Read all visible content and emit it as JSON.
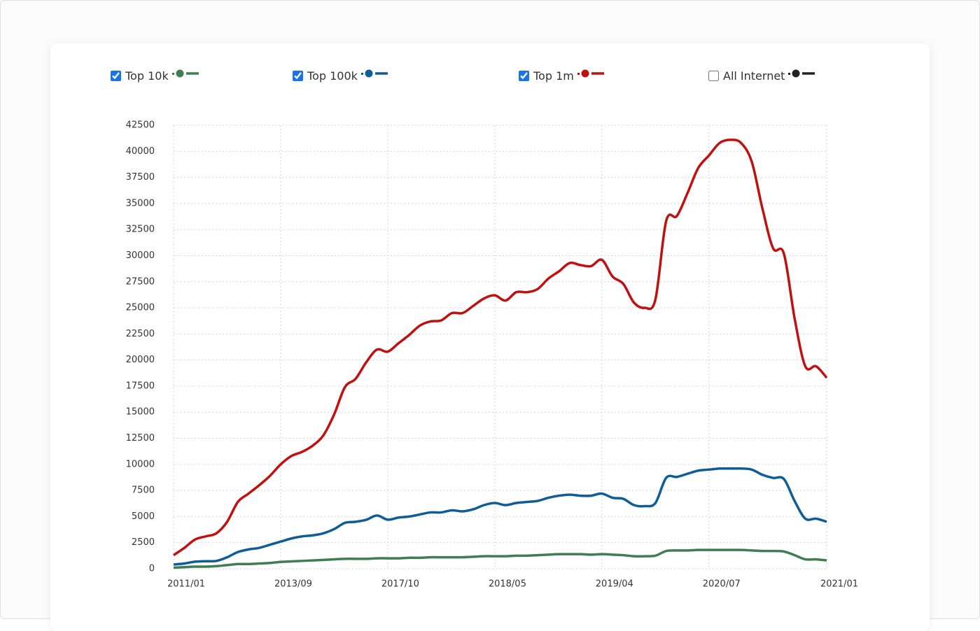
{
  "chart_data": {
    "type": "line",
    "categories": [
      "2011/01",
      null,
      null,
      null,
      null,
      null,
      null,
      null,
      null,
      null,
      "2013/09",
      null,
      null,
      null,
      null,
      null,
      null,
      null,
      null,
      null,
      "2017/10",
      null,
      null,
      null,
      null,
      null,
      null,
      null,
      null,
      null,
      "2018/05",
      null,
      null,
      null,
      null,
      null,
      null,
      null,
      null,
      null,
      "2019/04",
      null,
      null,
      null,
      null,
      null,
      null,
      null,
      null,
      null,
      "2020/07",
      null,
      null,
      null,
      null,
      null,
      null,
      null,
      null,
      null,
      null,
      "2021/01"
    ],
    "series": [
      {
        "name": "Top 10k",
        "color": "#3f7d52",
        "checked": true,
        "values": [
          100,
          150,
          200,
          200,
          250,
          350,
          450,
          450,
          500,
          550,
          650,
          700,
          750,
          800,
          850,
          900,
          950,
          950,
          950,
          1000,
          1000,
          1000,
          1050,
          1050,
          1100,
          1100,
          1100,
          1100,
          1150,
          1200,
          1200,
          1200,
          1250,
          1250,
          1300,
          1350,
          1400,
          1400,
          1400,
          1350,
          1400,
          1350,
          1300,
          1200,
          1200,
          1250,
          1700,
          1750,
          1750,
          1800,
          1800,
          1800,
          1800,
          1800,
          1750,
          1700,
          1700,
          1650,
          1300,
          900,
          900,
          800
        ]
      },
      {
        "name": "Top 100k",
        "color": "#0f5d96",
        "checked": true,
        "values": [
          400,
          500,
          680,
          720,
          750,
          1100,
          1600,
          1850,
          2000,
          2300,
          2600,
          2900,
          3100,
          3200,
          3400,
          3800,
          4400,
          4500,
          4700,
          5100,
          4700,
          4900,
          5000,
          5200,
          5400,
          5400,
          5600,
          5500,
          5700,
          6100,
          6300,
          6100,
          6300,
          6400,
          6500,
          6800,
          7000,
          7100,
          7000,
          7000,
          7200,
          6800,
          6700,
          6100,
          6000,
          6300,
          8700,
          8800,
          9100,
          9400,
          9500,
          9600,
          9600,
          9600,
          9500,
          9000,
          8700,
          8600,
          6500,
          4800,
          4800,
          4500
        ]
      },
      {
        "name": "Top 1m",
        "color": "#c01010",
        "checked": true,
        "values": [
          1300,
          2000,
          2800,
          3100,
          3400,
          4500,
          6400,
          7200,
          8000,
          8900,
          10000,
          10800,
          11200,
          11800,
          12800,
          14800,
          17400,
          18200,
          19800,
          21000,
          20800,
          21600,
          22400,
          23300,
          23700,
          23800,
          24500,
          24500,
          25200,
          25900,
          26200,
          25700,
          26500,
          26500,
          26800,
          27800,
          28500,
          29300,
          29100,
          29000,
          29600,
          28000,
          27300,
          25500,
          25000,
          25800,
          33300,
          33800,
          36000,
          38400,
          39600,
          40800,
          41100,
          40800,
          39000,
          34500,
          30700,
          30200,
          24000,
          19400,
          19400,
          18300
        ]
      },
      {
        "name": "All Internet",
        "color": "#222222",
        "checked": false
      }
    ],
    "ylim": [
      0,
      42500
    ],
    "yticks": [
      0,
      2500,
      5000,
      7500,
      10000,
      12500,
      15000,
      17500,
      20000,
      22500,
      25000,
      27500,
      30000,
      32500,
      35000,
      37500,
      40000,
      42500
    ],
    "grid": true
  }
}
